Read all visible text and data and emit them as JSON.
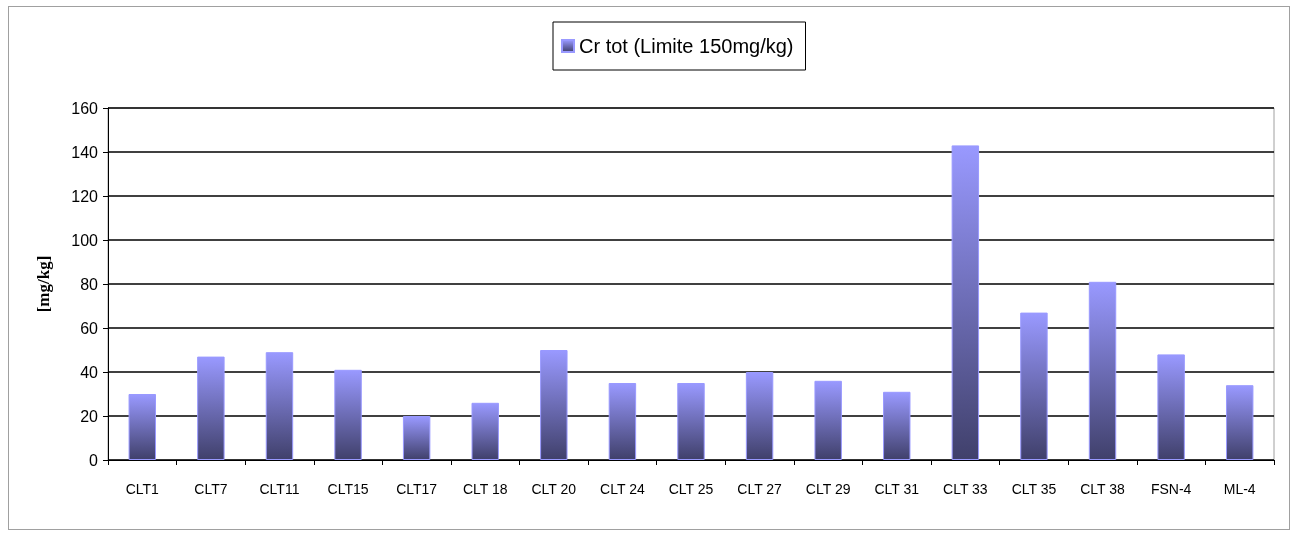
{
  "chart_data": {
    "type": "bar",
    "categories": [
      "CLT1",
      "CLT7",
      "CLT11",
      "CLT15",
      "CLT17",
      "CLT 18",
      "CLT 20",
      "CLT 24",
      "CLT 25",
      "CLT 27",
      "CLT 29",
      "CLT 31",
      "CLT 33",
      "CLT 35",
      "CLT 38",
      "FSN-4",
      "ML-4"
    ],
    "series": [
      {
        "name": "Cr tot (Limite 150mg/kg)",
        "color": "#9999ff",
        "values": [
          30,
          47,
          49,
          41,
          20,
          26,
          50,
          35,
          35,
          40,
          36,
          31,
          143,
          67,
          81,
          48,
          34
        ]
      }
    ],
    "ylabel": "[mg/kg]",
    "ylim": [
      0,
      160
    ],
    "yticks": [
      0,
      20,
      40,
      60,
      80,
      100,
      120,
      140,
      160
    ],
    "grid": "y",
    "legend": "top"
  }
}
